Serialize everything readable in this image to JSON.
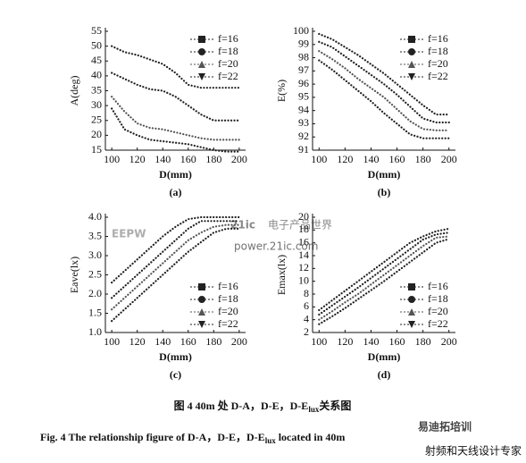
{
  "chart_data": [
    {
      "type": "line",
      "panel": "(a)",
      "xlabel": "D(mm)",
      "ylabel": "A(deg)",
      "legend": "upper right",
      "x": [
        100,
        110,
        120,
        130,
        140,
        150,
        160,
        170,
        180,
        190,
        200
      ],
      "xlim": [
        95,
        205
      ],
      "xticks": [
        100,
        120,
        140,
        160,
        180,
        200
      ],
      "ylim": [
        15,
        55
      ],
      "yticks": [
        15,
        20,
        25,
        30,
        35,
        40,
        45,
        50,
        55
      ],
      "series": [
        {
          "name": "f=16",
          "color": "#222222",
          "marker": "square",
          "values": [
            50,
            48,
            47,
            45.5,
            44,
            41,
            37,
            36,
            36,
            36,
            36
          ]
        },
        {
          "name": "f=18",
          "color": "#222222",
          "marker": "circle",
          "values": [
            41,
            39,
            37,
            35.5,
            35,
            33,
            30,
            27,
            25,
            25,
            25
          ]
        },
        {
          "name": "f=20",
          "color": "#555555",
          "marker": "triangle-up",
          "values": [
            33,
            28,
            24,
            22.5,
            22,
            21,
            20,
            19,
            18.5,
            18.5,
            18.5
          ]
        },
        {
          "name": "f=22",
          "color": "#222222",
          "marker": "triangle-down",
          "values": [
            29,
            22,
            20,
            18.5,
            18,
            17.5,
            17,
            16,
            15,
            14.5,
            14.5
          ]
        }
      ]
    },
    {
      "type": "line",
      "panel": "(b)",
      "xlabel": "D(mm)",
      "ylabel": "E(%)",
      "legend": "upper right",
      "x": [
        100,
        110,
        120,
        130,
        140,
        150,
        160,
        170,
        180,
        190,
        200
      ],
      "xlim": [
        95,
        205
      ],
      "xticks": [
        100,
        120,
        140,
        160,
        180,
        200
      ],
      "ylim": [
        91,
        100
      ],
      "yticks": [
        91,
        92,
        93,
        94,
        95,
        96,
        97,
        98,
        99,
        100
      ],
      "series": [
        {
          "name": "f=16",
          "color": "#222222",
          "marker": "square",
          "values": [
            99.8,
            99.4,
            98.8,
            98.2,
            97.5,
            96.8,
            96,
            95.2,
            94.4,
            93.7,
            93.7
          ]
        },
        {
          "name": "f=18",
          "color": "#222222",
          "marker": "circle",
          "values": [
            99.2,
            98.8,
            98.1,
            97.4,
            96.7,
            96,
            95.2,
            94.3,
            93.4,
            93.1,
            93.1
          ]
        },
        {
          "name": "f=20",
          "color": "#555555",
          "marker": "triangle-up",
          "values": [
            98.5,
            97.9,
            97.2,
            96.4,
            95.7,
            95,
            94.1,
            93.2,
            92.6,
            92.5,
            92.5
          ]
        },
        {
          "name": "f=22",
          "color": "#222222",
          "marker": "triangle-down",
          "values": [
            97.8,
            97.1,
            96.3,
            95.5,
            94.7,
            93.8,
            93,
            92.2,
            91.9,
            91.9,
            91.9
          ]
        }
      ]
    },
    {
      "type": "line",
      "panel": "(c)",
      "xlabel": "D(mm)",
      "ylabel": "Eave(lx)",
      "legend": "lower right",
      "x": [
        100,
        110,
        120,
        130,
        140,
        150,
        160,
        170,
        180,
        190,
        200
      ],
      "xlim": [
        95,
        205
      ],
      "xticks": [
        100,
        120,
        140,
        160,
        180,
        200
      ],
      "ylim": [
        1,
        4
      ],
      "yticks": [
        {
          "value": 1,
          "label": "1.0"
        },
        1.5,
        {
          "value": 2,
          "label": "2.0"
        },
        2.5,
        {
          "value": 3,
          "label": "3.0"
        },
        3.5,
        {
          "value": 4,
          "label": "4.0"
        }
      ],
      "series": [
        {
          "name": "f=16",
          "color": "#222222",
          "marker": "square",
          "values": [
            2.3,
            2.6,
            2.9,
            3.2,
            3.5,
            3.75,
            3.95,
            4,
            4,
            4,
            4
          ]
        },
        {
          "name": "f=18",
          "color": "#222222",
          "marker": "circle",
          "values": [
            1.9,
            2.2,
            2.5,
            2.8,
            3.1,
            3.4,
            3.7,
            3.9,
            3.9,
            3.9,
            3.9
          ]
        },
        {
          "name": "f=20",
          "color": "#555555",
          "marker": "triangle-up",
          "values": [
            1.6,
            1.9,
            2.2,
            2.5,
            2.8,
            3.1,
            3.4,
            3.6,
            3.75,
            3.8,
            3.8
          ]
        },
        {
          "name": "f=22",
          "color": "#222222",
          "marker": "triangle-down",
          "values": [
            1.3,
            1.6,
            1.9,
            2.2,
            2.5,
            2.8,
            3.1,
            3.35,
            3.6,
            3.7,
            3.7
          ]
        }
      ]
    },
    {
      "type": "line",
      "panel": "(d)",
      "xlabel": "D(mm)",
      "ylabel": "Emax(lx)",
      "legend": "lower right",
      "x": [
        100,
        110,
        120,
        130,
        140,
        150,
        160,
        170,
        180,
        190,
        200
      ],
      "xlim": [
        95,
        205
      ],
      "xticks": [
        100,
        120,
        140,
        160,
        180,
        200
      ],
      "ylim": [
        2,
        20
      ],
      "yticks": [
        2,
        4,
        6,
        8,
        10,
        12,
        14,
        16,
        18,
        20
      ],
      "series": [
        {
          "name": "f=16",
          "color": "#222222",
          "marker": "square",
          "values": [
            5.5,
            7,
            8.5,
            10,
            11.5,
            13,
            14.5,
            16,
            17,
            17.8,
            18.2
          ]
        },
        {
          "name": "f=18",
          "color": "#222222",
          "marker": "circle",
          "values": [
            4.8,
            6.2,
            7.6,
            9,
            10.5,
            12,
            13.5,
            15,
            16.5,
            17.3,
            17.6
          ]
        },
        {
          "name": "f=20",
          "color": "#555555",
          "marker": "triangle-up",
          "values": [
            4,
            5.3,
            6.7,
            8,
            9.5,
            11,
            12.5,
            14,
            15.5,
            16.8,
            17
          ]
        },
        {
          "name": "f=22",
          "color": "#222222",
          "marker": "triangle-down",
          "values": [
            3.3,
            4.5,
            5.8,
            7.2,
            8.6,
            10,
            11.5,
            13,
            14.5,
            16,
            16.6
          ]
        }
      ]
    }
  ],
  "caption_cn": {
    "before": "图 4   40m 处 D-A，D-E，D-E",
    "sub": "lux",
    "after": "关系图"
  },
  "caption_en": {
    "before": "Fig. 4    The relationship figure of D-A，D-E，D-E",
    "sub": "lux",
    "after": " located in 40m"
  },
  "watermarks": [
    "EEPW",
    "21ic",
    "电子产品世界",
    "power.21ic.com",
    "易迪拓培训",
    "射频和天线设计专家"
  ]
}
